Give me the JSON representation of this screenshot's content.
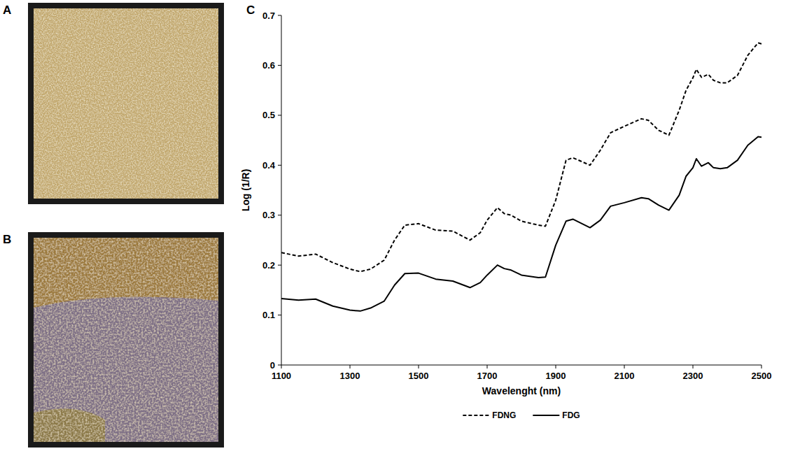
{
  "panel_labels": [
    "A",
    "B",
    "C"
  ],
  "chart_data": {
    "type": "line",
    "x_label": "Wavelenght (nm)",
    "y_label": "Log (1/R)",
    "x": [
      1100,
      1150,
      1200,
      1250,
      1300,
      1330,
      1360,
      1400,
      1430,
      1460,
      1500,
      1550,
      1600,
      1650,
      1680,
      1700,
      1730,
      1750,
      1770,
      1800,
      1850,
      1870,
      1900,
      1930,
      1950,
      2000,
      2030,
      2060,
      2100,
      2150,
      2170,
      2200,
      2230,
      2260,
      2280,
      2300,
      2310,
      2325,
      2345,
      2360,
      2380,
      2400,
      2430,
      2460,
      2490,
      2500
    ],
    "series": [
      {
        "name": "FDNG",
        "color": "#000000",
        "line_style": "dashed",
        "values": [
          0.225,
          0.218,
          0.222,
          0.205,
          0.192,
          0.187,
          0.192,
          0.21,
          0.25,
          0.28,
          0.283,
          0.27,
          0.268,
          0.25,
          0.265,
          0.29,
          0.315,
          0.303,
          0.3,
          0.288,
          0.28,
          0.278,
          0.33,
          0.41,
          0.415,
          0.4,
          0.43,
          0.465,
          0.478,
          0.493,
          0.49,
          0.47,
          0.46,
          0.51,
          0.55,
          0.575,
          0.592,
          0.576,
          0.582,
          0.57,
          0.565,
          0.565,
          0.58,
          0.62,
          0.645,
          0.643
        ]
      },
      {
        "name": "FDG",
        "color": "#000000",
        "line_style": "solid",
        "values": [
          0.133,
          0.13,
          0.132,
          0.118,
          0.11,
          0.108,
          0.114,
          0.128,
          0.16,
          0.183,
          0.184,
          0.172,
          0.168,
          0.155,
          0.165,
          0.18,
          0.2,
          0.193,
          0.19,
          0.18,
          0.175,
          0.176,
          0.24,
          0.288,
          0.292,
          0.275,
          0.29,
          0.318,
          0.325,
          0.335,
          0.333,
          0.32,
          0.31,
          0.34,
          0.378,
          0.395,
          0.413,
          0.398,
          0.405,
          0.395,
          0.393,
          0.395,
          0.41,
          0.44,
          0.457,
          0.456
        ]
      }
    ],
    "xlim": [
      1100,
      2500
    ],
    "xticks": [
      1100,
      1300,
      1500,
      1700,
      1900,
      2100,
      2300,
      2500
    ],
    "ylim": [
      0,
      0.7
    ],
    "yticks": [
      0,
      0.1,
      0.2,
      0.3,
      0.4,
      0.5,
      0.6,
      0.7
    ],
    "grid": false,
    "legend": "bottom"
  }
}
